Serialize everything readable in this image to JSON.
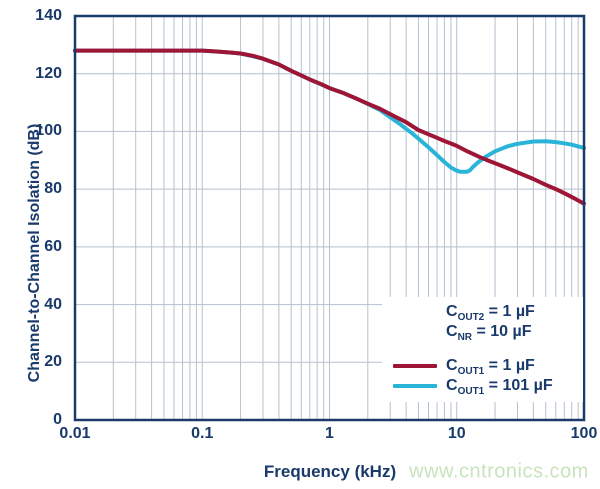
{
  "watermark": "www.cntronics.com",
  "colors": {
    "navy_text": "#1a3a6b",
    "plot_border": "#1a3a6b",
    "series_red": "#9e1535",
    "series_cyan": "#2ab4d7",
    "grid": "#b6c1cf",
    "watermark_green": "#c9e3bd",
    "background": "#ffffff"
  },
  "chart_data": {
    "type": "line",
    "title": "",
    "xlabel": "Frequency (kHz)",
    "ylabel": "Channel-to-Channel Isolation (dB)",
    "x_scale": "log",
    "xlim": [
      0.01,
      100
    ],
    "ylim": [
      0,
      140
    ],
    "grid": {
      "minor_x": true,
      "color": "#b6c1cf"
    },
    "legend_position": "inside-bottom-right",
    "xticks": {
      "values": [
        0.01,
        0.1,
        1,
        10,
        100
      ],
      "labels": [
        "0.01",
        "0.1",
        "1",
        "10",
        "100"
      ]
    },
    "yticks": {
      "values": [
        0,
        20,
        40,
        60,
        80,
        100,
        120,
        140
      ],
      "labels": [
        "0",
        "20",
        "40",
        "60",
        "80",
        "100",
        "120",
        "140"
      ]
    },
    "series": [
      {
        "id": "cout1-1uf",
        "name": "COUT1 = 1 µF",
        "color": "#9e1535",
        "points": [
          [
            0.01,
            128
          ],
          [
            0.02,
            128
          ],
          [
            0.04,
            128
          ],
          [
            0.07,
            128
          ],
          [
            0.1,
            128
          ],
          [
            0.13,
            127.7
          ],
          [
            0.17,
            127.3
          ],
          [
            0.2,
            127
          ],
          [
            0.25,
            126.2
          ],
          [
            0.3,
            125.2
          ],
          [
            0.4,
            123.2
          ],
          [
            0.5,
            121
          ],
          [
            0.6,
            119.4
          ],
          [
            0.7,
            118
          ],
          [
            0.85,
            116.5
          ],
          [
            1,
            115
          ],
          [
            1.3,
            113.2
          ],
          [
            1.6,
            111.5
          ],
          [
            2,
            109.6
          ],
          [
            2.5,
            107.8
          ],
          [
            3,
            106
          ],
          [
            4,
            103.2
          ],
          [
            5,
            100.5
          ],
          [
            6,
            99
          ],
          [
            7,
            97.8
          ],
          [
            8,
            96.7
          ],
          [
            9,
            95.8
          ],
          [
            10,
            95
          ],
          [
            12,
            93.2
          ],
          [
            15,
            91.2
          ],
          [
            17,
            90.2
          ],
          [
            20,
            89
          ],
          [
            25,
            87.3
          ],
          [
            30,
            85.8
          ],
          [
            40,
            83.5
          ],
          [
            50,
            81.5
          ],
          [
            60,
            80
          ],
          [
            70,
            78.6
          ],
          [
            85,
            76.7
          ],
          [
            100,
            75
          ]
        ]
      },
      {
        "id": "cout1-101uf",
        "name": "COUT1 = 101 µF",
        "color": "#2ab4d7",
        "points": [
          [
            0.01,
            128
          ],
          [
            0.05,
            128
          ],
          [
            0.1,
            128
          ],
          [
            0.15,
            127.5
          ],
          [
            0.2,
            127
          ],
          [
            0.3,
            125.2
          ],
          [
            0.4,
            123.2
          ],
          [
            0.5,
            121
          ],
          [
            0.7,
            118
          ],
          [
            1,
            115
          ],
          [
            1.3,
            113.2
          ],
          [
            1.6,
            111.5
          ],
          [
            2,
            109.5
          ],
          [
            2.5,
            107.4
          ],
          [
            3,
            104.9
          ],
          [
            3.5,
            102.9
          ],
          [
            4,
            100.9
          ],
          [
            4.5,
            99.2
          ],
          [
            5,
            97.5
          ],
          [
            6,
            94.5
          ],
          [
            7,
            91.8
          ],
          [
            8,
            89.4
          ],
          [
            9,
            87.5
          ],
          [
            10,
            86.4
          ],
          [
            10.7,
            86
          ],
          [
            12,
            86
          ],
          [
            12.6,
            86.4
          ],
          [
            13.5,
            87.8
          ],
          [
            15,
            89.6
          ],
          [
            17,
            91.3
          ],
          [
            20,
            93.1
          ],
          [
            25,
            94.8
          ],
          [
            30,
            95.7
          ],
          [
            40,
            96.5
          ],
          [
            50,
            96.6
          ],
          [
            60,
            96.3
          ],
          [
            70,
            95.9
          ],
          [
            80,
            95.4
          ],
          [
            100,
            94.3
          ]
        ]
      }
    ]
  },
  "legend": {
    "conditions": [
      {
        "base": "C",
        "sub": "OUT2",
        "rest": " = 1 µF"
      },
      {
        "base": "C",
        "sub": "NR",
        "rest": " = 10 µF"
      }
    ],
    "entries": [
      {
        "base": "C",
        "sub": "OUT1",
        "rest": " = 1 µF",
        "color": "#9e1535"
      },
      {
        "base": "C",
        "sub": "OUT1",
        "rest": " = 101 µF",
        "color": "#2ab4d7"
      }
    ]
  }
}
